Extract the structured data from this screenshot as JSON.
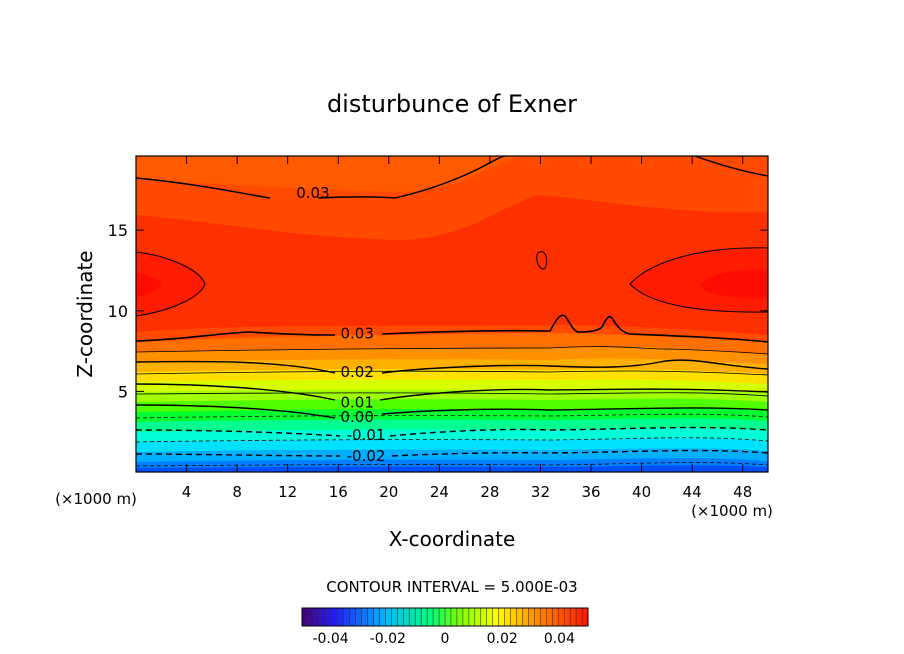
{
  "chart_data": {
    "type": "heatmap",
    "title": "disturbunce of Exner",
    "xlabel": "X-coordinate",
    "ylabel": "Z-coordinate",
    "x_unit": "(×1000 m)",
    "z_unit": "(×1000 m)",
    "xlim": [
      0,
      50
    ],
    "ylim": [
      0,
      19.6
    ],
    "x_ticks": [
      4,
      8,
      12,
      16,
      20,
      24,
      28,
      32,
      36,
      40,
      44,
      48
    ],
    "y_ticks": [
      5,
      10,
      15
    ],
    "contour_interval_text": "CONTOUR INTERVAL = 5.000E-03",
    "contour_interval": 0.005,
    "contour_labels": [
      {
        "text": "0.03",
        "x": 14,
        "z": 17.3
      },
      {
        "text": "0.03",
        "x": 17.5,
        "z": 8.6
      },
      {
        "text": "0.02",
        "x": 17.5,
        "z": 6.2
      },
      {
        "text": "0.01",
        "x": 17.5,
        "z": 4.3
      },
      {
        "text": "0.00",
        "x": 17.5,
        "z": 3.4
      },
      {
        "text": "-0.01",
        "x": 18.2,
        "z": 2.3
      },
      {
        "text": "-0.02",
        "x": 18.2,
        "z": 1.0
      }
    ],
    "colorbar": {
      "min": -0.05,
      "max": 0.05,
      "tick_values": [
        -0.04,
        -0.02,
        0,
        0.02,
        0.04
      ],
      "tick_labels": [
        "-0.04",
        "-0.02",
        "0",
        "0.02",
        "0.04"
      ]
    },
    "colors": [
      "#2020ff",
      "#0060ff",
      "#00a0ff",
      "#00d8ff",
      "#00ffb0",
      "#00ff40",
      "#60ff00",
      "#b0ff00",
      "#ffff00",
      "#ffd000",
      "#ffa000",
      "#ff7000",
      "#ff4000",
      "#ff1400"
    ]
  }
}
